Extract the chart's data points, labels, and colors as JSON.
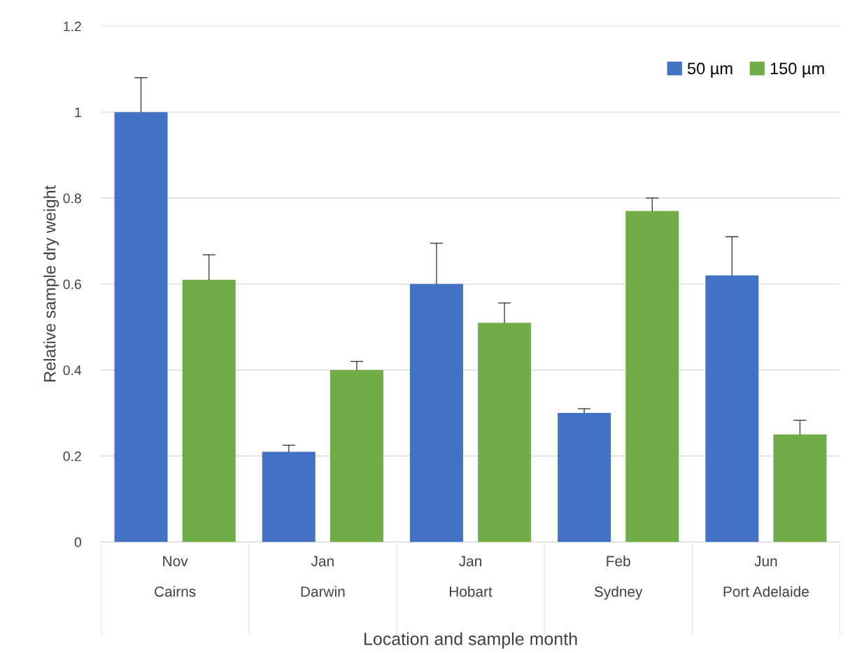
{
  "chart_data": {
    "type": "bar",
    "categories": [
      "Nov\nCairns",
      "Jan\nDarwin",
      "Jan\nHobart",
      "Feb\nSydney",
      "Jun\nPort Adelaide"
    ],
    "xlabel": "Location and sample month",
    "ylabel": "Relative sample dry weight",
    "series": [
      {
        "name": "50 µm",
        "color": "#4472c4",
        "values": [
          1.0,
          0.21,
          0.6,
          0.3,
          0.62
        ],
        "errors": [
          [
            1.0,
            1.08
          ],
          [
            0.21,
            0.225
          ],
          [
            0.6,
            0.695
          ],
          [
            0.3,
            0.31
          ],
          [
            0.62,
            0.71
          ]
        ]
      },
      {
        "name": "150 µm",
        "color": "#70ad47",
        "values": [
          0.61,
          0.4,
          0.51,
          0.77,
          0.25
        ],
        "errors": [
          [
            0.61,
            0.668
          ],
          [
            0.4,
            0.42
          ],
          [
            0.51,
            0.556
          ],
          [
            0.77,
            0.8
          ],
          [
            0.25,
            0.283
          ]
        ]
      }
    ],
    "ylim": [
      0,
      1.2
    ],
    "yticks": [
      0,
      0.2,
      0.4,
      0.6,
      0.8,
      1,
      1.2
    ],
    "grid": "y",
    "legend": "top right"
  }
}
